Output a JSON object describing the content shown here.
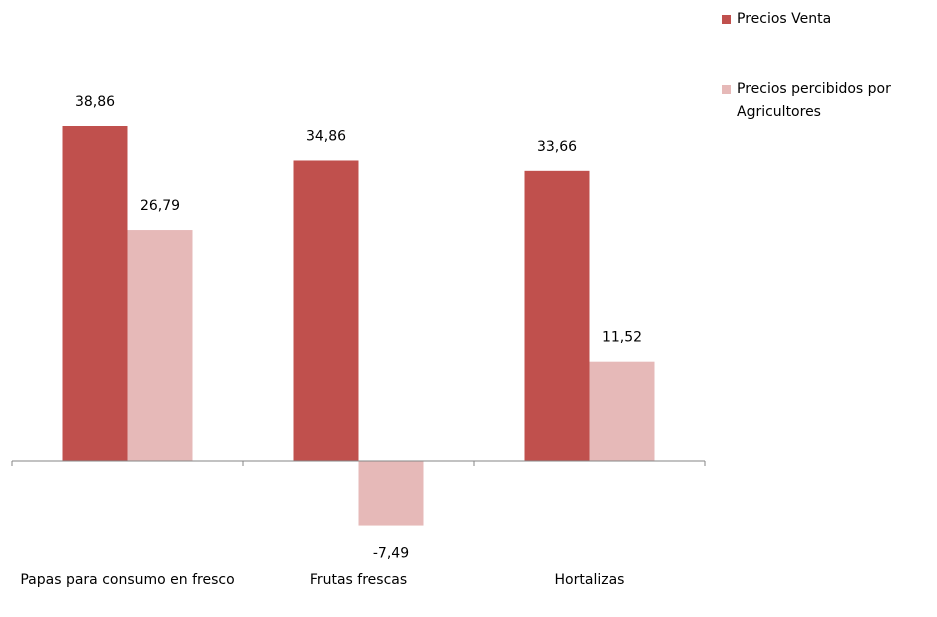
{
  "chart_data": {
    "type": "bar",
    "categories": [
      "Papas para consumo en fresco",
      "Frutas frescas",
      "Hortalizas"
    ],
    "series": [
      {
        "name": "Precios Venta",
        "color": "#c0504d",
        "values": [
          38.86,
          34.86,
          33.66
        ],
        "value_labels": [
          "38,86",
          "34,86",
          "33,66"
        ]
      },
      {
        "name": "Precios percibidos por Agricultores",
        "color": "#e6b9b8",
        "values": [
          26.79,
          -7.49,
          11.52
        ],
        "value_labels": [
          "26,79",
          "-7,49",
          "11,52"
        ]
      }
    ],
    "legend": "right"
  }
}
